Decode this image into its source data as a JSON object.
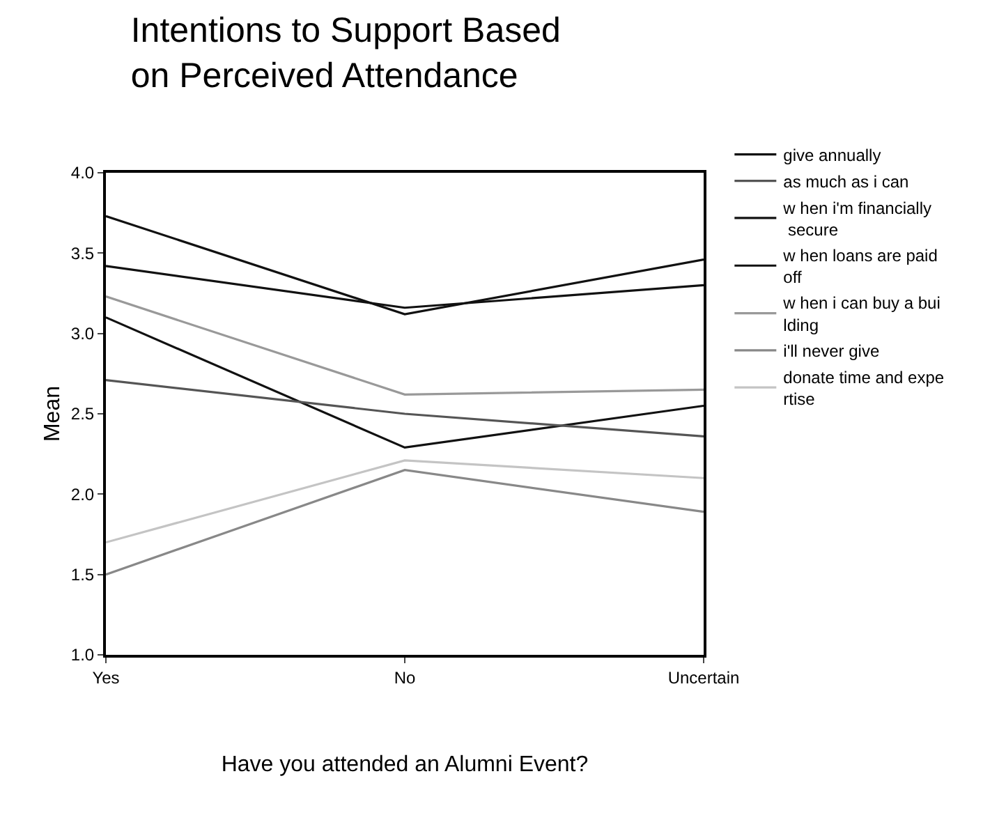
{
  "chart_data": {
    "type": "line",
    "title": "Intentions to Support Based\non Perceived Attendance",
    "xlabel": "Have you attended an Alumni Event?",
    "ylabel": "Mean",
    "categories": [
      "Yes",
      "No",
      "Uncertain"
    ],
    "series": [
      {
        "name": "give annually",
        "color": "#111111",
        "values": [
          3.1,
          2.29,
          2.55
        ]
      },
      {
        "name": "as much as i can",
        "color": "#555555",
        "values": [
          2.71,
          2.5,
          2.36
        ]
      },
      {
        "name": "w hen i'm financially\n secure",
        "color": "#111111",
        "values": [
          3.73,
          3.12,
          3.46
        ]
      },
      {
        "name": "w hen loans are paid\noff",
        "color": "#111111",
        "values": [
          3.42,
          3.16,
          3.3
        ]
      },
      {
        "name": "w hen i can buy a bui\nlding",
        "color": "#999999",
        "values": [
          3.23,
          2.62,
          2.65
        ]
      },
      {
        "name": "i'll never give",
        "color": "#888888",
        "values": [
          1.5,
          2.15,
          1.89
        ]
      },
      {
        "name": "donate time and expe\nrtise",
        "color": "#c4c4c4",
        "values": [
          1.7,
          2.21,
          2.1
        ]
      }
    ],
    "ylim": [
      1.0,
      4.0
    ],
    "yticks": [
      {
        "value": 1.0,
        "label": "1.0"
      },
      {
        "value": 1.5,
        "label": "1.5"
      },
      {
        "value": 2.0,
        "label": "2.0"
      },
      {
        "value": 2.5,
        "label": "2.5"
      },
      {
        "value": 3.0,
        "label": "3.0"
      },
      {
        "value": 3.5,
        "label": "3.5"
      },
      {
        "value": 4.0,
        "label": "4.0"
      }
    ],
    "legend": "right",
    "marker": "none",
    "line_style": "solid"
  }
}
